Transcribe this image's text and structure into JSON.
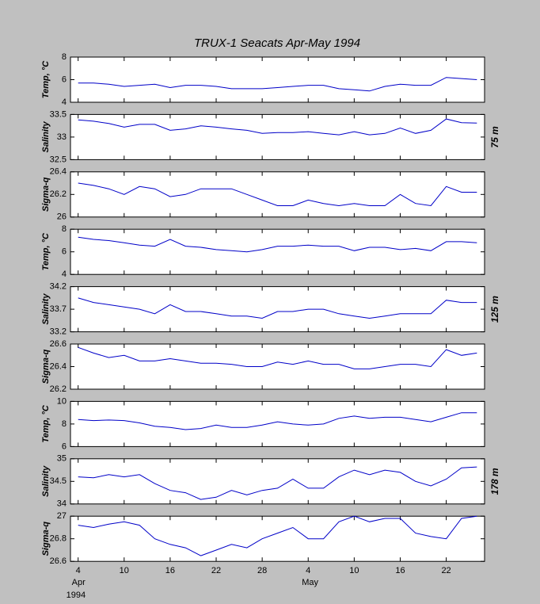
{
  "title": "TRUX-1   Seacats  Apr-May 1994",
  "x_axis": {
    "x": [
      "1994-04-04",
      "1994-04-06",
      "1994-04-08",
      "1994-04-10",
      "1994-04-12",
      "1994-04-14",
      "1994-04-16",
      "1994-04-18",
      "1994-04-20",
      "1994-04-22",
      "1994-04-24",
      "1994-04-26",
      "1994-04-28",
      "1994-04-30",
      "1994-05-02",
      "1994-05-04",
      "1994-05-06",
      "1994-05-08",
      "1994-05-10",
      "1994-05-12",
      "1994-05-14",
      "1994-05-16",
      "1994-05-18",
      "1994-05-20",
      "1994-05-22",
      "1994-05-24",
      "1994-05-26"
    ],
    "xlim": [
      "1994-04-03",
      "1994-05-27"
    ],
    "xticks": [
      {
        "value": "1994-04-04",
        "label": "4"
      },
      {
        "value": "1994-04-10",
        "label": "10"
      },
      {
        "value": "1994-04-16",
        "label": "16"
      },
      {
        "value": "1994-04-22",
        "label": "22"
      },
      {
        "value": "1994-04-28",
        "label": "28"
      },
      {
        "value": "1994-05-04",
        "label": "4"
      },
      {
        "value": "1994-05-10",
        "label": "10"
      },
      {
        "value": "1994-05-16",
        "label": "16"
      },
      {
        "value": "1994-05-22",
        "label": "22"
      }
    ],
    "month_labels": [
      {
        "value": "1994-04-04",
        "label": "Apr"
      },
      {
        "value": "1994-05-04",
        "label": "May"
      }
    ],
    "year_label": {
      "value": "1994-04-04",
      "label": "1994"
    }
  },
  "chart_data": [
    {
      "type": "line",
      "ylabel": "Temp, °C",
      "ylim": [
        4,
        8
      ],
      "yticks": [
        4,
        6,
        8
      ],
      "color": "#0000c8",
      "values": [
        5.7,
        5.7,
        5.6,
        5.4,
        5.5,
        5.6,
        5.3,
        5.5,
        5.5,
        5.4,
        5.2,
        5.2,
        5.2,
        5.3,
        5.4,
        5.5,
        5.5,
        5.2,
        5.1,
        5.0,
        5.4,
        5.6,
        5.5,
        5.5,
        6.2,
        6.1,
        6.0
      ]
    },
    {
      "type": "line",
      "ylabel": "Salinity",
      "ylim": [
        32.5,
        33.5
      ],
      "yticks": [
        32.5,
        33,
        33.5
      ],
      "color": "#0000c8",
      "depth_label": "75 m",
      "values": [
        33.38,
        33.35,
        33.3,
        33.22,
        33.28,
        33.28,
        33.15,
        33.18,
        33.25,
        33.22,
        33.18,
        33.15,
        33.08,
        33.1,
        33.1,
        33.12,
        33.08,
        33.05,
        33.12,
        33.05,
        33.08,
        33.2,
        33.08,
        33.15,
        33.4,
        33.32,
        33.31
      ]
    },
    {
      "type": "line",
      "ylabel": "Sigma-q",
      "ylim": [
        26,
        26.4
      ],
      "yticks": [
        26,
        26.2,
        26.4
      ],
      "color": "#0000c8",
      "values": [
        26.3,
        26.28,
        26.25,
        26.2,
        26.27,
        26.25,
        26.18,
        26.2,
        26.25,
        26.25,
        26.25,
        26.2,
        26.15,
        26.1,
        26.1,
        26.15,
        26.12,
        26.1,
        26.12,
        26.1,
        26.1,
        26.2,
        26.12,
        26.1,
        26.27,
        26.22,
        26.22
      ]
    },
    {
      "type": "line",
      "ylabel": "Temp, °C",
      "ylim": [
        4,
        8
      ],
      "yticks": [
        4,
        6,
        8
      ],
      "color": "#0000c8",
      "values": [
        7.3,
        7.1,
        7.0,
        6.8,
        6.6,
        6.5,
        7.1,
        6.5,
        6.4,
        6.2,
        6.1,
        6.0,
        6.2,
        6.5,
        6.5,
        6.6,
        6.5,
        6.5,
        6.1,
        6.4,
        6.4,
        6.2,
        6.3,
        6.1,
        6.9,
        6.9,
        6.8
      ]
    },
    {
      "type": "line",
      "ylabel": "Salinity",
      "ylim": [
        33.2,
        34.2
      ],
      "yticks": [
        33.2,
        33.7,
        34.2
      ],
      "color": "#0000c8",
      "depth_label": "125 m",
      "values": [
        33.95,
        33.85,
        33.8,
        33.75,
        33.7,
        33.6,
        33.8,
        33.65,
        33.65,
        33.6,
        33.55,
        33.55,
        33.5,
        33.65,
        33.65,
        33.7,
        33.7,
        33.6,
        33.55,
        33.5,
        33.55,
        33.6,
        33.6,
        33.6,
        33.9,
        33.85,
        33.85
      ]
    },
    {
      "type": "line",
      "ylabel": "Sigma-q",
      "ylim": [
        26.2,
        26.6
      ],
      "yticks": [
        26.2,
        26.4,
        26.6
      ],
      "color": "#0000c8",
      "values": [
        26.57,
        26.52,
        26.48,
        26.5,
        26.45,
        26.45,
        26.47,
        26.45,
        26.43,
        26.43,
        26.42,
        26.4,
        26.4,
        26.44,
        26.42,
        26.45,
        26.42,
        26.42,
        26.38,
        26.38,
        26.4,
        26.42,
        26.42,
        26.4,
        26.55,
        26.5,
        26.52
      ]
    },
    {
      "type": "line",
      "ylabel": "Temp, °C",
      "ylim": [
        6,
        10
      ],
      "yticks": [
        6,
        8,
        10
      ],
      "color": "#0000c8",
      "values": [
        8.4,
        8.3,
        8.35,
        8.3,
        8.1,
        7.8,
        7.7,
        7.5,
        7.6,
        7.9,
        7.7,
        7.7,
        7.9,
        8.2,
        8.0,
        7.9,
        8.0,
        8.5,
        8.7,
        8.5,
        8.6,
        8.6,
        8.4,
        8.2,
        8.6,
        9.0,
        9.0
      ]
    },
    {
      "type": "line",
      "ylabel": "Salinity",
      "ylim": [
        34,
        35
      ],
      "yticks": [
        34,
        34.5,
        35
      ],
      "color": "#0000c8",
      "depth_label": "178 m",
      "values": [
        34.6,
        34.58,
        34.65,
        34.6,
        34.65,
        34.45,
        34.3,
        34.25,
        34.1,
        34.15,
        34.3,
        34.2,
        34.3,
        34.35,
        34.55,
        34.35,
        34.35,
        34.6,
        34.75,
        34.65,
        34.75,
        34.7,
        34.5,
        34.4,
        34.55,
        34.8,
        34.82
      ]
    },
    {
      "type": "line",
      "ylabel": "Sigma-q",
      "ylim": [
        26.6,
        27
      ],
      "yticks": [
        26.6,
        26.8,
        27
      ],
      "color": "#0000c8",
      "values": [
        26.92,
        26.9,
        26.93,
        26.95,
        26.92,
        26.8,
        26.75,
        26.72,
        26.65,
        26.7,
        26.75,
        26.72,
        26.8,
        26.85,
        26.9,
        26.8,
        26.8,
        26.95,
        27.0,
        26.95,
        26.98,
        26.98,
        26.85,
        26.82,
        26.8,
        26.98,
        27.0
      ]
    }
  ]
}
